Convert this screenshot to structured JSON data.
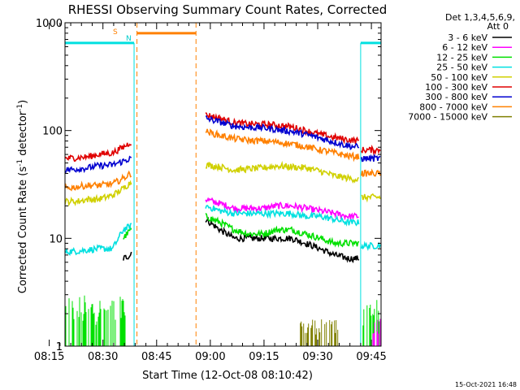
{
  "chart_data": {
    "type": "line",
    "title": "RHESSI Observing Summary Count Rates, Corrected",
    "xlabel": "Start Time (12-Oct-08 08:10:42)",
    "ylabel": "Corrected Count Rate (s⁻¹ detector⁻¹)",
    "ylabel_main": "Corrected Count Rate (s",
    "ylabel_mid": " detector",
    "ylabel_end": ")",
    "sup": "-1",
    "yscale": "log",
    "ylim": [
      1,
      1000
    ],
    "xlim_minutes": [
      8.7,
      97.0
    ],
    "x_tick_labels": [
      "08:15",
      "08:30",
      "08:45",
      "09:00",
      "09:15",
      "09:30",
      "09:45"
    ],
    "x_tick_minutes": [
      15,
      30,
      45,
      60,
      75,
      90,
      105
    ],
    "y_tick_labels": [
      "1",
      "10",
      "100",
      "1000"
    ],
    "y_tick_values": [
      1,
      10,
      100,
      1000
    ],
    "legend_title": [
      "Det 1,3,4,5,6,9,",
      "Att 0"
    ],
    "legend_position": "right",
    "footer": "15-Oct-2021 16:48",
    "flags": {
      "saa_label": "S",
      "night_label": "N"
    },
    "series": [
      {
        "name": "3 - 6 keV",
        "color": "#000000"
      },
      {
        "name": "6 - 12 keV",
        "color": "#ff00ff"
      },
      {
        "name": "12 - 25 keV",
        "color": "#00e000"
      },
      {
        "name": "25 - 50 keV",
        "color": "#00e0e0"
      },
      {
        "name": "50 - 100 keV",
        "color": "#d0d000"
      },
      {
        "name": "100 - 300 keV",
        "color": "#e00000"
      },
      {
        "name": "300 - 800 keV",
        "color": "#0000d0"
      },
      {
        "name": "800 - 7000 keV",
        "color": "#ff8000"
      },
      {
        "name": "7000 - 15000 keV",
        "color": "#808000"
      }
    ],
    "segments": [
      {
        "x": [
          8.7,
          12,
          15,
          18,
          22,
          25,
          27,
          27.5
        ],
        "y": {
          "3 - 6 keV": [
            null,
            null,
            null,
            null,
            null,
            6.5,
            7.0,
            8.0
          ],
          "6 - 12 keV": [
            null,
            null,
            null,
            null,
            null,
            null,
            null,
            null
          ],
          "12 - 25 keV": [
            null,
            null,
            null,
            null,
            null,
            10,
            12,
            12
          ],
          "25 - 50 keV": [
            7.5,
            7.6,
            7.8,
            8.0,
            8.0,
            12,
            13,
            13
          ],
          "50 - 100 keV": [
            22,
            22,
            23,
            23,
            25,
            29,
            33,
            33
          ],
          "100 - 300 keV": [
            55,
            56,
            57,
            60,
            62,
            70,
            78,
            78
          ],
          "300 - 800 keV": [
            43,
            44,
            45,
            47,
            48,
            52,
            55,
            55
          ],
          "800 - 7000 keV": [
            29,
            30,
            31,
            31,
            32,
            36,
            40,
            40
          ],
          "7000 - 15000 keV": [
            null,
            null,
            null,
            null,
            null,
            null,
            null,
            null
          ]
        }
      },
      {
        "x": [
          48,
          52,
          56,
          60,
          64,
          68,
          72,
          76,
          80,
          84,
          88,
          91
        ],
        "y": {
          "3 - 6 keV": [
            15,
            12,
            10,
            10,
            10,
            10,
            10,
            9,
            8,
            7,
            6.5,
            6.5
          ],
          "6 - 12 keV": [
            23,
            21,
            19,
            19,
            19,
            20,
            20,
            19,
            18,
            17,
            16,
            16
          ],
          "12 - 25 keV": [
            16,
            14,
            12,
            11,
            11,
            12,
            12,
            11,
            10,
            9,
            9,
            9
          ],
          "25 - 50 keV": [
            20,
            18,
            17,
            17,
            17,
            17,
            17,
            16,
            16,
            15,
            14,
            14
          ],
          "50 - 100 keV": [
            48,
            46,
            43,
            44,
            45,
            47,
            46,
            45,
            42,
            38,
            36,
            35
          ],
          "100 - 300 keV": [
            140,
            130,
            118,
            115,
            114,
            112,
            108,
            100,
            92,
            86,
            82,
            80
          ],
          "300 - 800 keV": [
            130,
            120,
            110,
            107,
            106,
            102,
            98,
            92,
            85,
            78,
            72,
            70
          ],
          "800 - 7000 keV": [
            98,
            90,
            84,
            81,
            80,
            78,
            75,
            71,
            66,
            62,
            58,
            57
          ],
          "7000 - 15000 keV": [
            null,
            null,
            null,
            null,
            null,
            null,
            null,
            null,
            null,
            null,
            null,
            null
          ]
        }
      },
      {
        "x": [
          91.5,
          94,
          97
        ],
        "y": {
          "3 - 6 keV": [
            null,
            null,
            null
          ],
          "6 - 12 keV": [
            null,
            null,
            null
          ],
          "12 - 25 keV": [
            null,
            null,
            null
          ],
          "25 - 50 keV": [
            8.5,
            8.5,
            8.6
          ],
          "50 - 100 keV": [
            24,
            24,
            24
          ],
          "100 - 300 keV": [
            66,
            66,
            66
          ],
          "300 - 800 keV": [
            55,
            55,
            55
          ],
          "800 - 7000 keV": [
            40,
            40,
            40
          ],
          "7000 - 15000 keV": [
            null,
            null,
            null
          ]
        }
      }
    ],
    "noise_bands": [
      {
        "name": "12 - 25 keV",
        "x": [
          8.7,
          26.5
        ],
        "y": [
          1,
          3
        ]
      },
      {
        "name": "12 - 25 keV",
        "x": [
          91.5,
          97
        ],
        "y": [
          1,
          3
        ]
      },
      {
        "name": "6 - 12 keV",
        "x": [
          94.5,
          97
        ],
        "y": [
          1,
          1.8
        ]
      },
      {
        "name": "7000 - 15000 keV",
        "x": [
          74,
          86
        ],
        "y": [
          1,
          1.8
        ]
      }
    ],
    "flag_lines": {
      "saa_level": 800,
      "saa_intervals": [
        [
          28.8,
          45.3
        ]
      ],
      "night_level": 650,
      "night_intervals": [
        [
          8.7,
          28.0
        ],
        [
          91.3,
          97.0
        ]
      ],
      "saa_dashed_x": [
        28.8,
        45.3
      ],
      "night_solid_x": [
        8.7,
        28.0,
        91.3
      ],
      "night_dashed_x": [
        28.0,
        97.0
      ]
    }
  }
}
